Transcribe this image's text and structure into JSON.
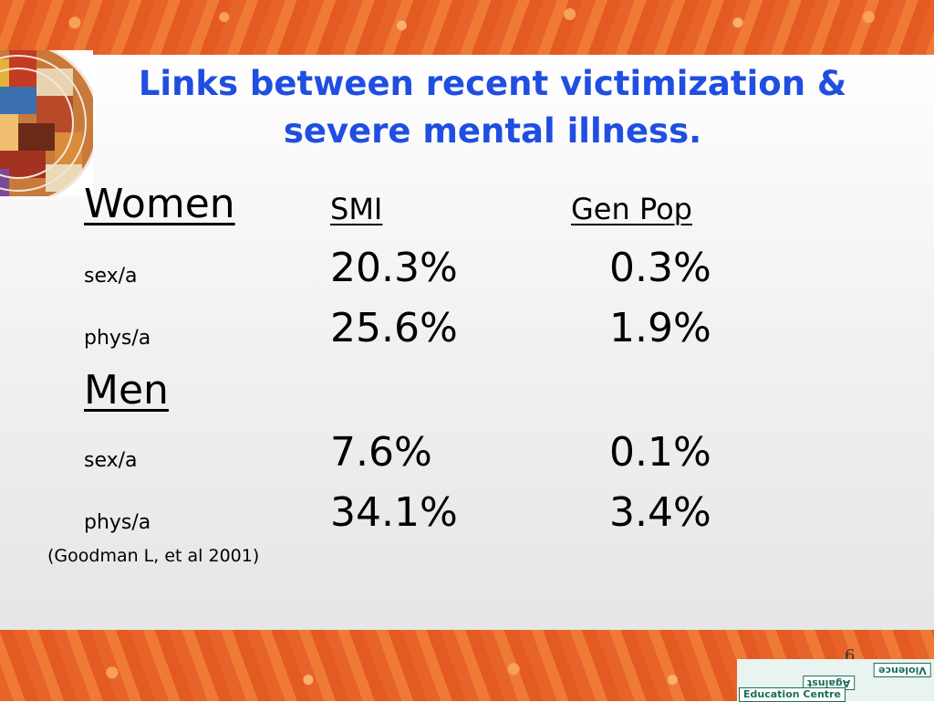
{
  "slide": {
    "title_line1": "Links between recent victimization &",
    "title_line2": "severe mental illness.",
    "header": {
      "group": "Women",
      "col1": "SMI",
      "col2": "Gen Pop"
    },
    "women_rows": [
      {
        "label": "sex/a",
        "smi": "20.3%",
        "genpop": "0.3%"
      },
      {
        "label": "phys/a",
        "smi": "25.6%",
        "genpop": "1.9%"
      }
    ],
    "men_header": "Men",
    "men_rows": [
      {
        "label": "sex/a",
        "smi": "7.6%",
        "genpop": "0.1%"
      },
      {
        "label": "phys/a",
        "smi": "34.1%",
        "genpop": "3.4%"
      }
    ],
    "citation": "(Goodman L, et al 2001)",
    "page_number": "6"
  },
  "logo": {
    "line1": "Violence",
    "line2": "Against",
    "line3": "Education Centre"
  },
  "colors": {
    "title": "#1f4ee0",
    "frame": "#e8632a",
    "logo": "#1b6f5a"
  }
}
